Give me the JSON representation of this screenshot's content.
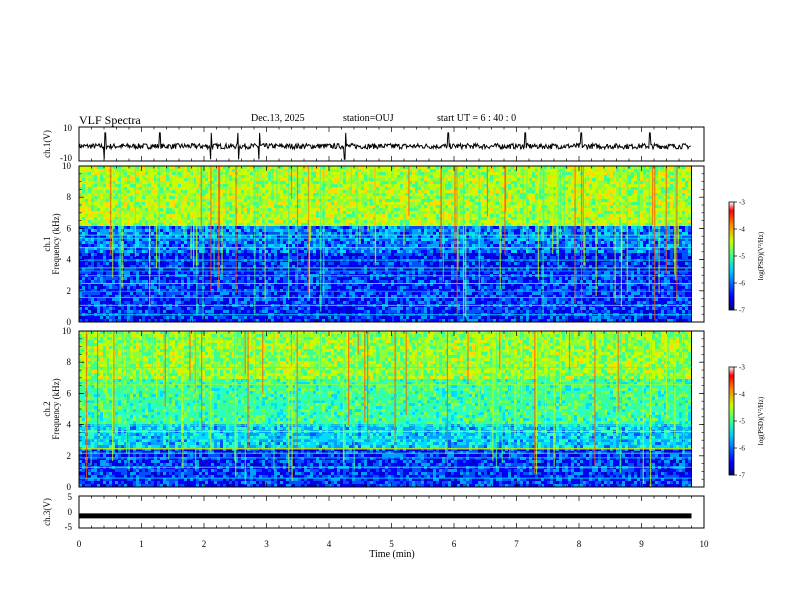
{
  "header": {
    "title": "VLF Spectra",
    "date": "Dec.13, 2025",
    "station": "station=OUJ",
    "start_time": "start  UT =  6 : 40 : 0"
  },
  "chart_data": [
    {
      "type": "line",
      "name": "waveform-ch1",
      "ylabel": "ch.1(V)",
      "ylim": [
        -10,
        10
      ],
      "yticks": [
        "10",
        "-10"
      ],
      "xlim": [
        0,
        10
      ]
    },
    {
      "type": "heatmap",
      "name": "spectrogram-ch1",
      "ylabel": "ch.1\nFrequency (kHz)",
      "ylim": [
        0,
        10
      ],
      "yticks": [
        "0",
        "2",
        "4",
        "6",
        "8",
        "10"
      ],
      "xlim": [
        0,
        10
      ],
      "colorbar": {
        "label": "log(PSD)(V²/Hz)",
        "range": [
          -7,
          -3
        ],
        "ticks": [
          "-3",
          "-4",
          "-5",
          "-6",
          "-7"
        ]
      }
    },
    {
      "type": "heatmap",
      "name": "spectrogram-ch2",
      "ylabel": "ch.2\nFrequency (kHz)",
      "ylim": [
        0,
        10
      ],
      "yticks": [
        "0",
        "2",
        "4",
        "6",
        "8",
        "10"
      ],
      "xlim": [
        0,
        10
      ],
      "colorbar": {
        "label": "log(PSD)(V²/Hz)",
        "range": [
          -7,
          -3
        ],
        "ticks": [
          "-3",
          "-4",
          "-5",
          "-6",
          "-7"
        ]
      }
    },
    {
      "type": "line",
      "name": "waveform-ch3",
      "ylabel": "ch.3(V)",
      "ylim": [
        -5,
        5
      ],
      "yticks": [
        "5",
        "0",
        "-5"
      ],
      "xlim": [
        0,
        10
      ],
      "level": -1.2
    }
  ],
  "xaxis": {
    "label": "Time (min)",
    "ticks": [
      "0",
      "1",
      "2",
      "3",
      "4",
      "5",
      "6",
      "7",
      "8",
      "9",
      "10"
    ],
    "data_end_min": 9.8
  }
}
